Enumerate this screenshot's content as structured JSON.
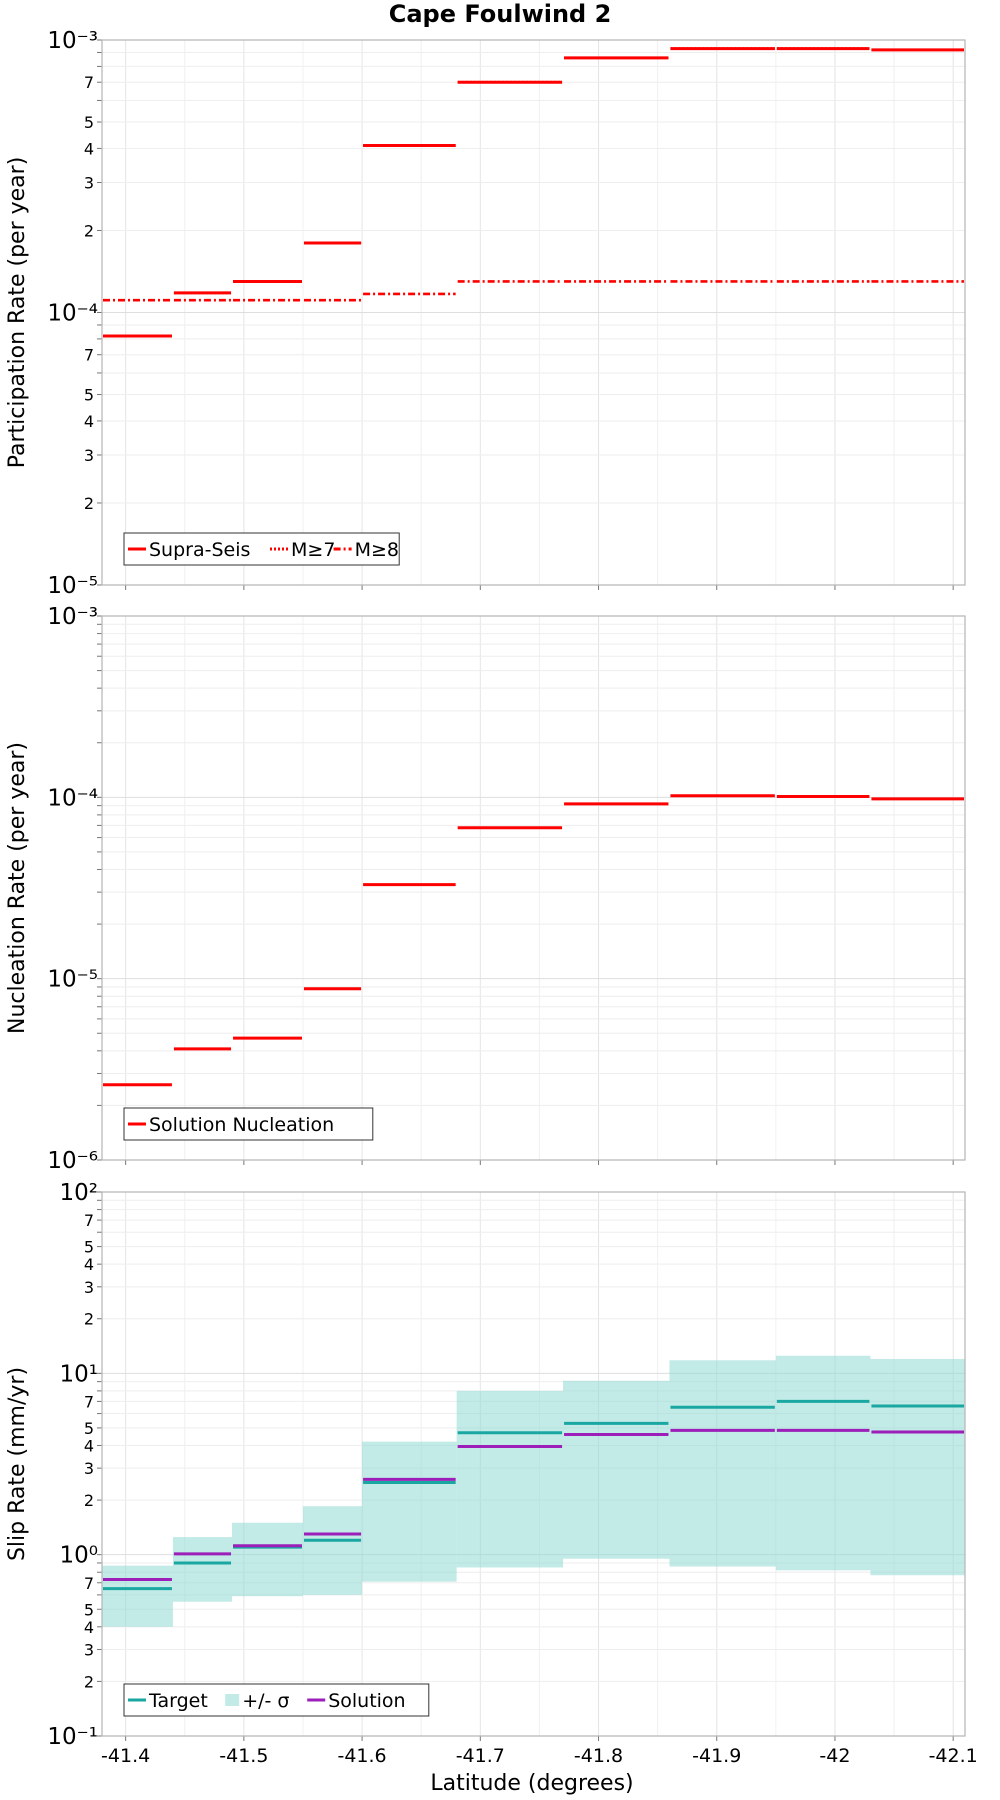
{
  "title": "Cape Foulwind 2",
  "xlabel": "Latitude (degrees)",
  "x_ticks": [
    "-41.4",
    "-41.5",
    "-41.6",
    "-41.7",
    "-41.8",
    "-41.9",
    "-42",
    "-42.1"
  ],
  "chart_data": [
    {
      "type": "line",
      "step": true,
      "ylabel": "Participation Rate (per year)",
      "yscale": "log",
      "ylim": [
        1e-05,
        0.001
      ],
      "x_edges": [
        -41.38,
        -41.44,
        -41.49,
        -41.55,
        -41.6,
        -41.68,
        -41.77,
        -41.86,
        -41.95,
        -42.03,
        -42.11
      ],
      "legend": {
        "position": "bottom-left",
        "labels": [
          "Supra-Seis",
          "M≥7",
          "M≥8"
        ]
      },
      "series": [
        {
          "name": "Supra-Seis",
          "color": "#ff0000",
          "style": "solid",
          "values": [
            8.2e-05,
            0.000118,
            0.00013,
            0.00018,
            0.00041,
            0.0007,
            0.00086,
            0.00093,
            0.00093,
            0.00092
          ]
        },
        {
          "name": "M≥7",
          "color": "#ff0000",
          "style": "dotted",
          "values": [
            8.2e-05,
            0.000118,
            0.00013,
            0.00018,
            0.00041,
            0.0007,
            0.00086,
            0.00093,
            0.00093,
            0.00092
          ]
        },
        {
          "name": "M≥8",
          "color": "#ff0000",
          "style": "dashdot",
          "values": [
            0.000111,
            0.000111,
            0.000111,
            0.000111,
            0.000117,
            0.00013,
            0.00013,
            0.00013,
            0.00013,
            0.00013
          ]
        }
      ]
    },
    {
      "type": "line",
      "step": true,
      "ylabel": "Nucleation Rate (per year)",
      "yscale": "log",
      "ylim": [
        1e-06,
        0.001
      ],
      "x_edges": [
        -41.38,
        -41.44,
        -41.49,
        -41.55,
        -41.6,
        -41.68,
        -41.77,
        -41.86,
        -41.95,
        -42.03,
        -42.11
      ],
      "legend": {
        "position": "bottom-left",
        "labels": [
          "Solution Nucleation"
        ]
      },
      "series": [
        {
          "name": "Solution Nucleation",
          "color": "#ff0000",
          "style": "solid",
          "values": [
            2.6e-06,
            4.1e-06,
            4.7e-06,
            8.8e-06,
            3.3e-05,
            6.8e-05,
            9.2e-05,
            0.000102,
            0.000101,
            9.8e-05
          ]
        }
      ]
    },
    {
      "type": "line",
      "step": true,
      "ylabel": "Slip Rate (mm/yr)",
      "yscale": "log",
      "ylim": [
        0.1,
        100
      ],
      "x_edges": [
        -41.38,
        -41.44,
        -41.49,
        -41.55,
        -41.6,
        -41.68,
        -41.77,
        -41.86,
        -41.95,
        -42.03,
        -42.11
      ],
      "legend": {
        "position": "bottom-left",
        "labels": [
          "Target",
          "+/- σ",
          "Solution"
        ]
      },
      "series": [
        {
          "name": "Target",
          "color": "#1aa7a1",
          "style": "solid",
          "values": [
            0.65,
            0.9,
            1.1,
            1.2,
            2.5,
            4.7,
            5.3,
            6.5,
            7.0,
            6.6
          ]
        },
        {
          "name": "Solution",
          "color": "#9b1fb8",
          "style": "solid",
          "values": [
            0.73,
            1.01,
            1.12,
            1.3,
            2.6,
            3.95,
            4.6,
            4.85,
            4.85,
            4.75
          ]
        }
      ],
      "band": {
        "name": "+/- σ",
        "color": "#8fd8d3",
        "lower": [
          0.4,
          0.55,
          0.59,
          0.6,
          0.71,
          0.85,
          0.95,
          0.86,
          0.82,
          0.77
        ],
        "upper": [
          0.87,
          1.25,
          1.5,
          1.85,
          4.2,
          8.0,
          9.1,
          11.8,
          12.5,
          12.0
        ]
      }
    }
  ]
}
